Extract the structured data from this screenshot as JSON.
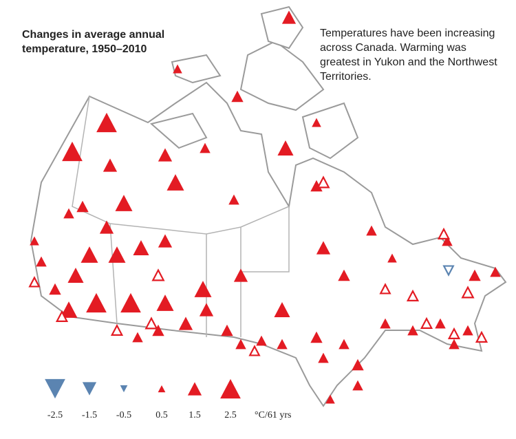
{
  "header": {
    "title": "Changes in average annual temperature, 1950–2010",
    "description": "Temperatures have been increasing across Canada. Warming was greatest in Yukon and the Northwest Territories."
  },
  "legend": {
    "values": [
      -2.5,
      -1.5,
      -0.5,
      0.5,
      1.5,
      2.5
    ],
    "unit": "°C/61 yrs"
  },
  "colors": {
    "positive": "#e31b23",
    "negative": "#5b84b1"
  },
  "stations": {
    "values": [
      2.5,
      2.5,
      1.5,
      2,
      1.5,
      2,
      1,
      1,
      1.5,
      1.2,
      0.8,
      1.8,
      0.8,
      1.2,
      1,
      1.5,
      1.5,
      1.8,
      2,
      1.5,
      1.2,
      1,
      2,
      2,
      1.8,
      1.5,
      1.8,
      2.5,
      2.5,
      2,
      1.5,
      2,
      1.2,
      1,
      0.8,
      1.5,
      1.2,
      1,
      1,
      1,
      1.2,
      1,
      1,
      1.2,
      1,
      1,
      1,
      1,
      1,
      1,
      0.8,
      1.2,
      1,
      1,
      0.8,
      1.2,
      1.2,
      1,
      1,
      0.9,
      0.9,
      1,
      0.9,
      0.9,
      0.8,
      1,
      0.9,
      0.9,
      0.8,
      1,
      0.9,
      0.8,
      -0.8
    ],
    "filled": [
      true,
      true,
      true,
      true,
      true,
      true,
      true,
      true,
      true,
      true,
      true,
      true,
      true,
      true,
      true,
      true,
      true,
      true,
      true,
      true,
      true,
      true,
      true,
      true,
      true,
      true,
      true,
      true,
      true,
      true,
      true,
      true,
      true,
      true,
      true,
      true,
      true,
      true,
      true,
      true,
      true,
      true,
      true,
      true,
      true,
      true,
      true,
      true,
      true,
      true,
      true,
      true,
      true,
      true,
      true,
      true,
      true,
      true,
      false,
      false,
      false,
      false,
      false,
      false,
      false,
      false,
      false,
      false,
      false,
      false,
      false,
      false,
      false
    ]
  }
}
